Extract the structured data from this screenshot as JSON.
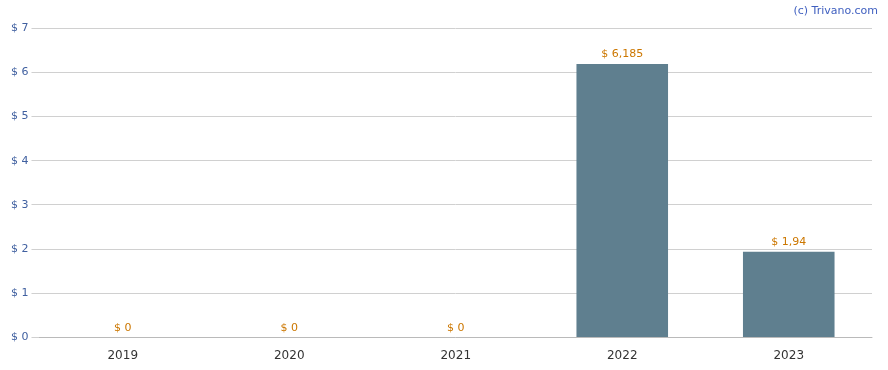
{
  "chart_data": {
    "type": "bar",
    "categories": [
      "2019",
      "2020",
      "2021",
      "2022",
      "2023"
    ],
    "values": [
      0,
      0,
      0,
      6.185,
      1.94
    ],
    "value_labels": [
      "$ 0",
      "$ 0",
      "$ 0",
      "$ 6,185",
      "$ 1,94"
    ],
    "data_labels": true,
    "color": "#5f7f8f",
    "ylim": [
      0,
      7
    ],
    "yticks": [
      {
        "value": 0,
        "label": "$ 0"
      },
      {
        "value": 1,
        "label": "$ 1"
      },
      {
        "value": 2,
        "label": "$ 2"
      },
      {
        "value": 3,
        "label": "$ 3"
      },
      {
        "value": 4,
        "label": "$ 4"
      },
      {
        "value": 5,
        "label": "$ 5"
      },
      {
        "value": 6,
        "label": "$ 6"
      },
      {
        "value": 7,
        "label": "$ 7"
      }
    ],
    "grid": true,
    "annotation": "(c) Trivano.com"
  }
}
